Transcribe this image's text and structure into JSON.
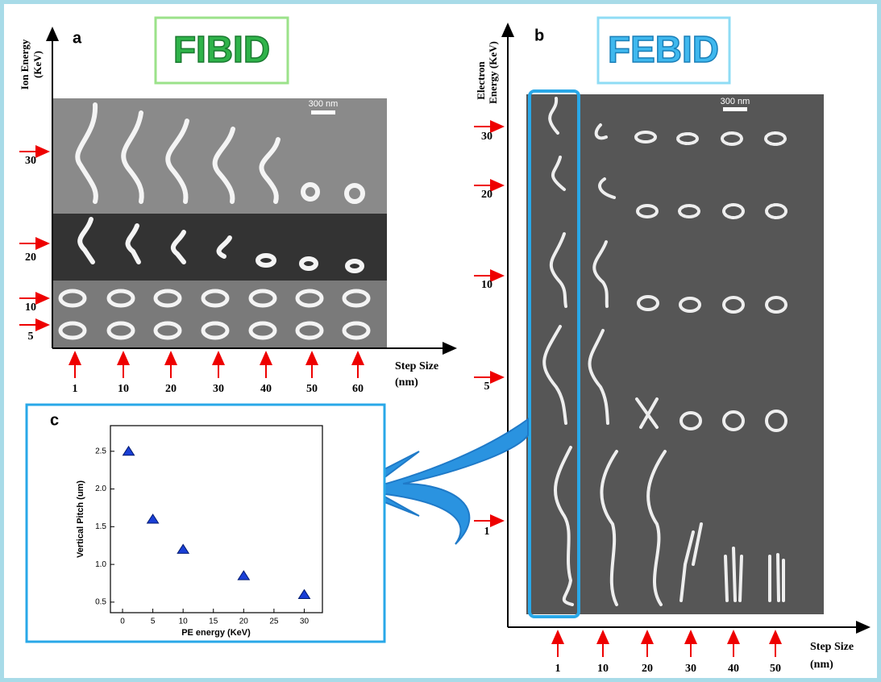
{
  "panel_a": {
    "label": "a",
    "title": "FIBID",
    "y_axis_label": [
      "Ion  Energy",
      "(KeV)"
    ],
    "y_ticks": [
      "30",
      "20",
      "10",
      "5"
    ],
    "x_axis_label": [
      "Step Size",
      "(nm)"
    ],
    "x_ticks": [
      "1",
      "10",
      "20",
      "30",
      "40",
      "50",
      "60"
    ],
    "scale_bar": "300 nm"
  },
  "panel_b": {
    "label": "b",
    "title": "FEBID",
    "y_axis_label": [
      "Electron",
      "Energy (KeV)"
    ],
    "y_ticks": [
      "30",
      "20",
      "10",
      "5",
      "1"
    ],
    "x_axis_label": [
      "Step Size",
      "(nm)"
    ],
    "x_ticks": [
      "1",
      "10",
      "20",
      "30",
      "40",
      "50"
    ],
    "scale_bar": "300 nm"
  },
  "chart_data": {
    "type": "scatter",
    "panel_label": "c",
    "x_label": "PE energy (KeV)",
    "y_label": "Vertical Pitch (um)",
    "color": "#1a3fd6",
    "x": [
      1,
      5,
      10,
      20,
      30
    ],
    "values": [
      2.5,
      1.6,
      1.2,
      0.85,
      0.6
    ],
    "xlim": [
      -2,
      33
    ],
    "ylim": [
      0.36,
      2.84
    ],
    "xticks": [
      0,
      5,
      10,
      15,
      20,
      25,
      30
    ],
    "yticks": [
      0.5,
      {
        "value": 1,
        "label": "1.0"
      },
      1.5,
      {
        "value": 2,
        "label": "2.0"
      },
      2.5
    ]
  }
}
